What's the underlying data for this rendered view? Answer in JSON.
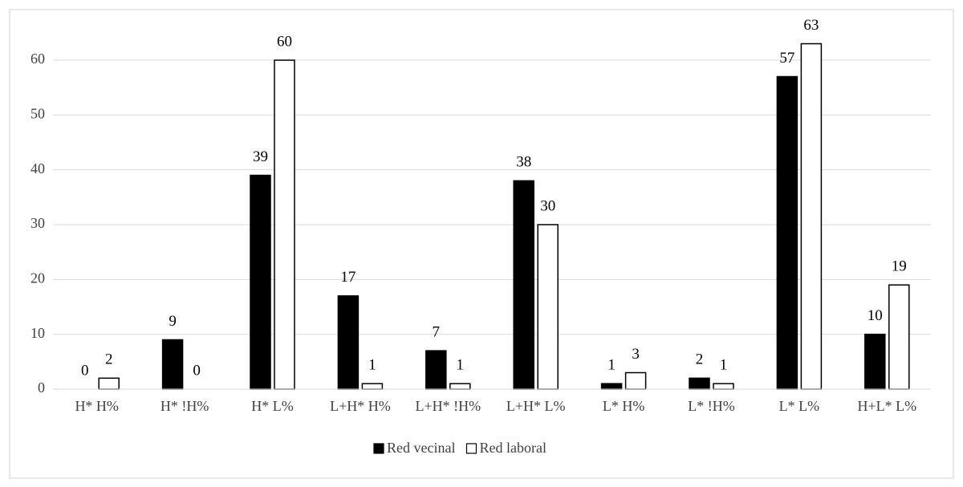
{
  "chart_data": {
    "type": "bar",
    "categories": [
      "H* H%",
      "H* !H%",
      "H* L%",
      "L+H* H%",
      "L+H* !H%",
      "L+H* L%",
      "L* H%",
      "L* !H%",
      "L* L%",
      "H+L* L%"
    ],
    "series": [
      {
        "name": "Red vecinal",
        "color": "#000000",
        "values": [
          0,
          9,
          39,
          17,
          7,
          38,
          1,
          2,
          57,
          10
        ]
      },
      {
        "name": "Red laboral",
        "color": "#ffffff",
        "values": [
          2,
          0,
          60,
          1,
          1,
          30,
          3,
          1,
          63,
          19
        ]
      }
    ],
    "ylim": [
      0,
      60
    ],
    "yticks": [
      0,
      10,
      20,
      30,
      40,
      50,
      60
    ],
    "grid": true,
    "legend": "bottom"
  }
}
